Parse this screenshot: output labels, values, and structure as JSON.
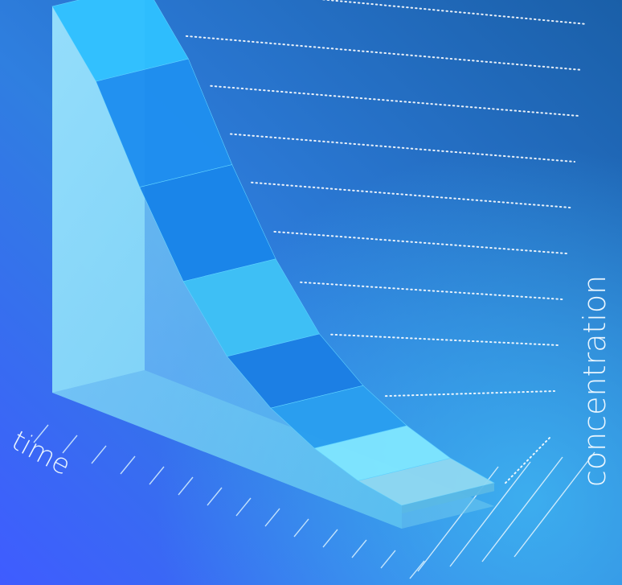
{
  "chart_data": {
    "type": "area",
    "style": "3d-ribbon",
    "xlabel": "time",
    "ylabel": "concentration",
    "title": "",
    "grid": true,
    "series": [
      {
        "values": [
          1.0,
          0.85,
          0.62,
          0.42,
          0.27,
          0.18,
          0.12,
          0.08,
          0.06
        ]
      }
    ]
  },
  "colors": {
    "background_top_right": "#1b6fb8",
    "background_bottom_left": "#3d62ff",
    "background_bottom_right": "#3aa9ee",
    "ribbon_light": "#7ee3ff",
    "ribbon_mid": "#3fb8f5",
    "ribbon_dark": "#1a7fe0",
    "gridline": "#ffffff"
  }
}
